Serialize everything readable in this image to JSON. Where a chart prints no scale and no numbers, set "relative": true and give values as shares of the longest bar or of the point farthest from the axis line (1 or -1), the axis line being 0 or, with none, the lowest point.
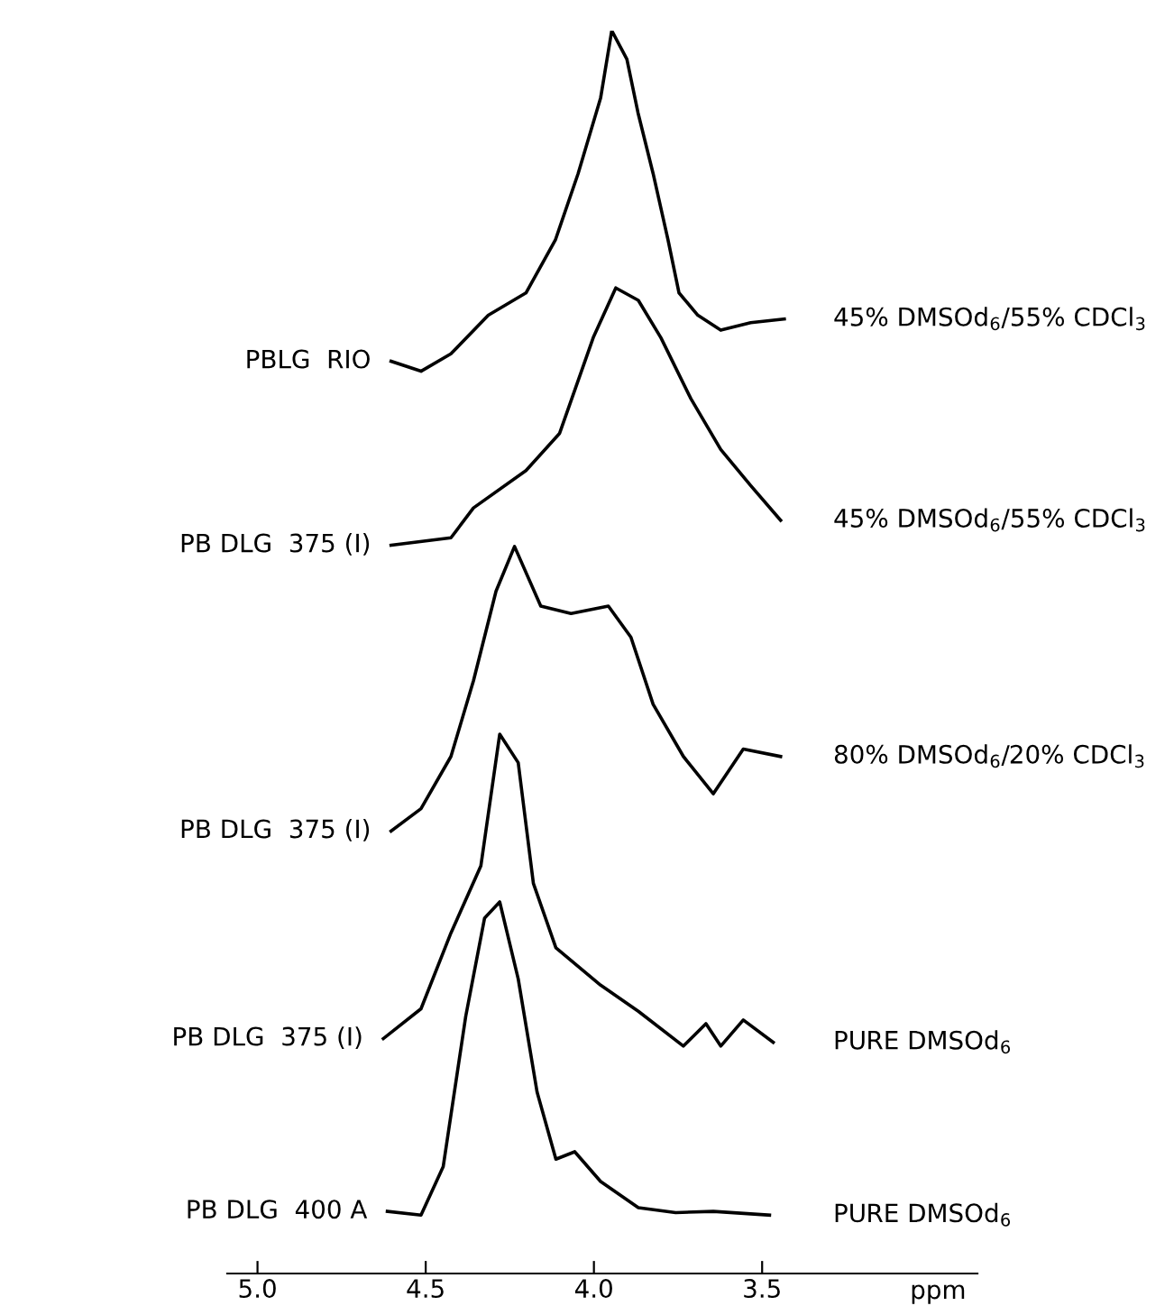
{
  "chart_data": {
    "type": "line",
    "relative": true,
    "xlabel": "ppm",
    "xlim": [
      5.09,
      2.86
    ],
    "xticks": [
      {
        "value": 5,
        "label": "5.0"
      },
      4.5,
      {
        "value": 4,
        "label": "4.0"
      },
      3.5
    ],
    "tick_labels": "x",
    "grid": false,
    "legend": false,
    "marker": "none",
    "line_style": "solid",
    "series": [
      {
        "name": "PBLG  RIO",
        "color": "#000000",
        "x": [
          4.603,
          4.514,
          4.425,
          4.314,
          4.202,
          4.114,
          4.047,
          3.98,
          3.947,
          3.902,
          3.869,
          3.824,
          3.78,
          3.747,
          3.691,
          3.623,
          3.534,
          3.434
        ],
        "values": [
          0.734,
          0.726,
          0.74,
          0.771,
          0.789,
          0.832,
          0.885,
          0.946,
          1,
          0.977,
          0.934,
          0.885,
          0.832,
          0.789,
          0.771,
          0.759,
          0.765,
          0.768
        ]
      },
      {
        "name": "PB DLG  375 (I)",
        "color": "#000000",
        "x": [
          4.603,
          4.425,
          4.358,
          4.202,
          4.102,
          4.002,
          3.935,
          3.868,
          3.801,
          3.712,
          3.623,
          3.534,
          3.445
        ],
        "values": [
          0.586,
          0.592,
          0.616,
          0.646,
          0.676,
          0.753,
          0.793,
          0.783,
          0.753,
          0.704,
          0.663,
          0.634,
          0.606
        ]
      },
      {
        "name": "PB DLG  375 (I)",
        "color": "#000000",
        "x": [
          4.603,
          4.514,
          4.425,
          4.358,
          4.291,
          4.236,
          4.158,
          4.068,
          3.957,
          3.89,
          3.824,
          3.734,
          3.645,
          3.556,
          3.445
        ],
        "values": [
          0.356,
          0.374,
          0.416,
          0.477,
          0.549,
          0.585,
          0.537,
          0.531,
          0.537,
          0.512,
          0.458,
          0.416,
          0.386,
          0.422,
          0.416
        ]
      },
      {
        "name": "PB DLG  375 (I)",
        "color": "#000000",
        "x": [
          4.626,
          4.514,
          4.425,
          4.336,
          4.28,
          4.225,
          4.18,
          4.113,
          3.98,
          3.868,
          3.734,
          3.667,
          3.623,
          3.556,
          3.467
        ],
        "values": [
          0.189,
          0.213,
          0.274,
          0.328,
          0.434,
          0.411,
          0.314,
          0.262,
          0.232,
          0.211,
          0.183,
          0.201,
          0.183,
          0.204,
          0.186
        ]
      },
      {
        "name": "PB DLG  400 A",
        "color": "#000000",
        "x": [
          4.614,
          4.514,
          4.448,
          4.381,
          4.325,
          4.28,
          4.225,
          4.169,
          4.113,
          4.057,
          3.98,
          3.868,
          3.757,
          3.645,
          3.478
        ],
        "values": [
          0.05,
          0.047,
          0.086,
          0.207,
          0.286,
          0.299,
          0.237,
          0.146,
          0.092,
          0.098,
          0.074,
          0.053,
          0.049,
          0.05,
          0.047
        ]
      }
    ],
    "annotations": [
      "45% DMSOd$_{6}$/55% CDCl$_{3}$",
      "45% DMSOd$_{6}$/55% CDCl$_{3}$",
      "80% DMSOd$_{6}$/20% CDCl$_{3}$",
      "PURE DMSOd$_{6}$",
      "PURE DMSOd$_{6}$"
    ]
  }
}
